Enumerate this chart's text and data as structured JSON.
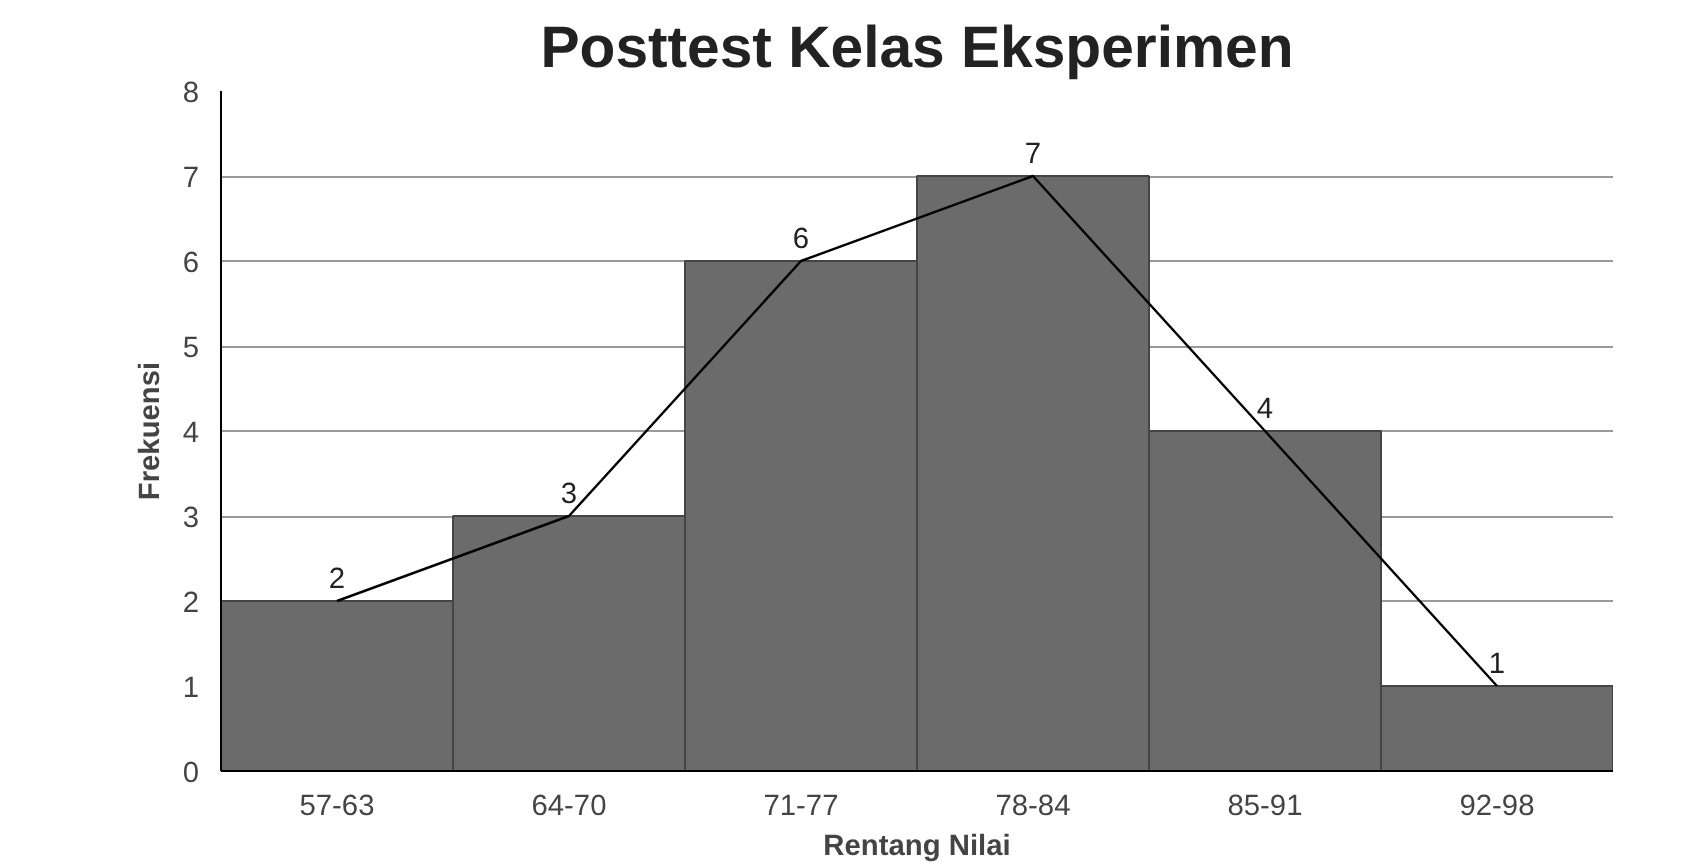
{
  "chart_data": {
    "type": "bar",
    "title": "Posttest Kelas Eksperimen",
    "xlabel": "Rentang Nilai",
    "ylabel": "Frekuensi",
    "categories": [
      "57-63",
      "64-70",
      "71-77",
      "78-84",
      "85-91",
      "92-98"
    ],
    "series": [
      {
        "color": "#6b6b6b",
        "values": [
          2,
          3,
          6,
          7,
          4,
          1
        ],
        "value_labels": [
          "2",
          "3",
          "6",
          "7",
          "4",
          "1"
        ]
      },
      {
        "type": "line",
        "color": "#000000",
        "values": [
          2,
          3,
          6,
          7,
          4,
          1
        ]
      }
    ],
    "ylim": [
      0,
      8
    ],
    "yticks": [
      0,
      1,
      2,
      3,
      4,
      5,
      6,
      7,
      8
    ],
    "grid": "y"
  }
}
